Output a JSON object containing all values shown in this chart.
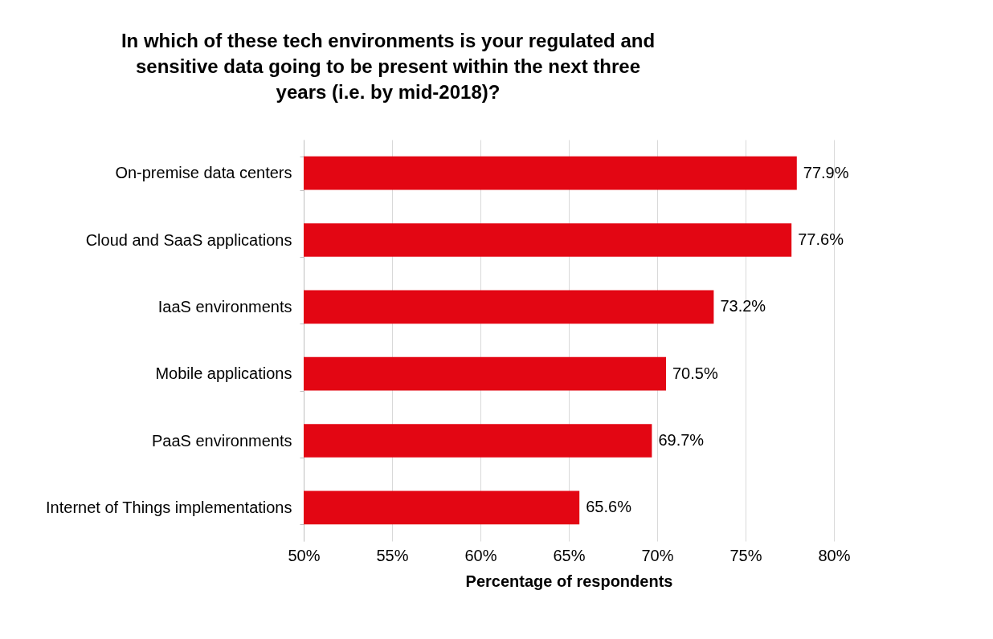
{
  "chart_data": {
    "type": "bar",
    "orientation": "horizontal",
    "title": "In which of these tech environments is your regulated and sensitive data going to be present within the next three years (i.e. by mid-2018)?",
    "xlabel": "Percentage of respondents",
    "categories": [
      "On-premise data centers",
      "Cloud and SaaS applications",
      "IaaS environments",
      "Mobile applications",
      "PaaS environments",
      "Internet of Things implementations"
    ],
    "values": [
      77.9,
      77.6,
      73.2,
      70.5,
      69.7,
      65.6
    ],
    "value_labels": [
      "77.9%",
      "77.6%",
      "73.2%",
      "70.5%",
      "69.7%",
      "65.6%"
    ],
    "color": "#e30613",
    "xlim": [
      50,
      80
    ],
    "xticks": [
      {
        "value": 50,
        "label": "50%"
      },
      {
        "value": 55,
        "label": "55%"
      },
      {
        "value": 60,
        "label": "60%"
      },
      {
        "value": 65,
        "label": "65%"
      },
      {
        "value": 70,
        "label": "70%"
      },
      {
        "value": 75,
        "label": "75%"
      },
      {
        "value": 80,
        "label": "80%"
      }
    ],
    "grid": "x"
  }
}
